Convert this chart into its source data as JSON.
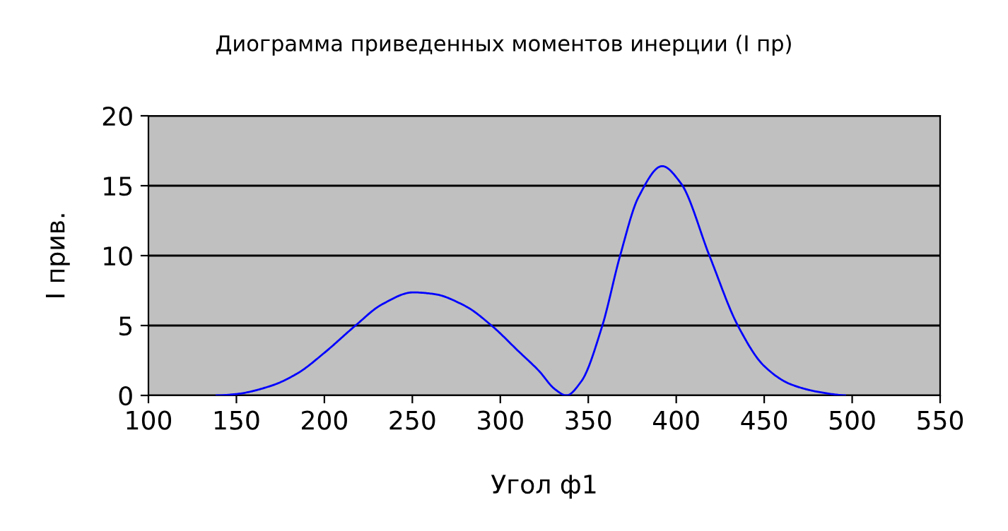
{
  "chart_data": {
    "type": "line",
    "title": "Диограмма приведенных моментов инерции (I пр)",
    "xlabel": "Угол ф1",
    "ylabel": "I прив.",
    "x": [
      138.7,
      150,
      170,
      185,
      200,
      217.7,
      232.6,
      250.5,
      262,
      280,
      295,
      310,
      322,
      331,
      337.5,
      346,
      358,
      368,
      378.6,
      392,
      402.5,
      419,
      435,
      450,
      465,
      483,
      496
    ],
    "series": [
      {
        "color": "#0000ff",
        "values": [
          0,
          0.1,
          0.7,
          1.6,
          3.05,
          5.0,
          6.5,
          7.37,
          7.26,
          6.4,
          5.0,
          3.2,
          1.75,
          0.45,
          0,
          1.0,
          5.0,
          9.95,
          14.2,
          16.4,
          15.2,
          9.95,
          5.0,
          2.1,
          0.8,
          0.2,
          0
        ]
      }
    ],
    "xlim": [
      100,
      550
    ],
    "xticks": [
      100,
      150,
      200,
      250,
      300,
      350,
      400,
      450,
      500,
      550
    ],
    "ylim": [
      0,
      20
    ],
    "yticks": [
      0,
      5,
      10,
      15,
      20
    ],
    "grid": "y",
    "marker": "none",
    "line_style": "solid"
  }
}
